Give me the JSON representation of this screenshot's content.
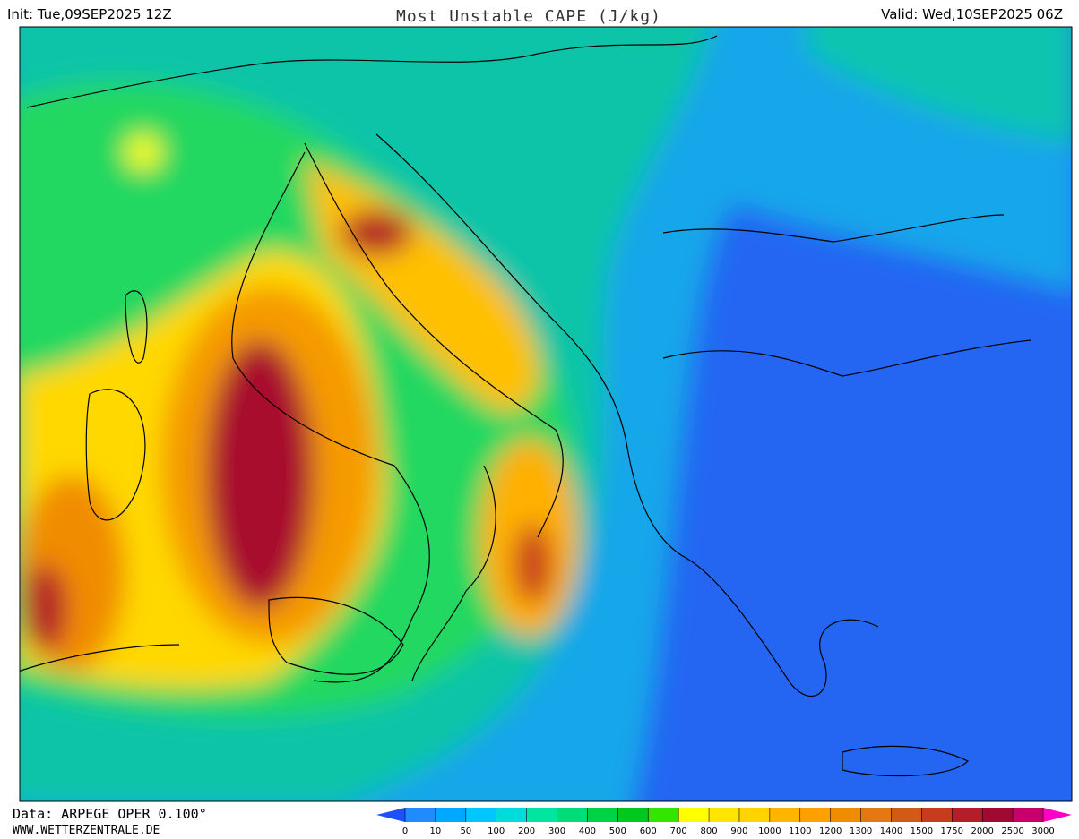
{
  "header": {
    "init": "Init: Tue,09SEP2025 12Z",
    "title": "Most Unstable CAPE (J/kg)",
    "valid": "Valid: Wed,10SEP2025 06Z"
  },
  "footer": {
    "source": "Data: ARPEGE OPER 0.100°",
    "website": "WWW.WETTERZENTRALE.DE"
  },
  "colorbar": {
    "labels": [
      0,
      10,
      50,
      100,
      200,
      300,
      400,
      500,
      600,
      700,
      800,
      900,
      1000,
      1100,
      1200,
      1300,
      1400,
      1500,
      1750,
      2000,
      2500,
      3000
    ],
    "colors": [
      "#1e8cff",
      "#00a8ff",
      "#00c8ff",
      "#00dcdc",
      "#00e6a0",
      "#00dc78",
      "#00d246",
      "#00c81e",
      "#32e600",
      "#ffff00",
      "#ffe600",
      "#ffd200",
      "#ffb400",
      "#ffa000",
      "#f08c00",
      "#e67814",
      "#d25a14",
      "#c83c1e",
      "#b41e28",
      "#a00a32",
      "#c8006e"
    ],
    "under_color": "#1e50ff",
    "over_color": "#ff00c8"
  }
}
